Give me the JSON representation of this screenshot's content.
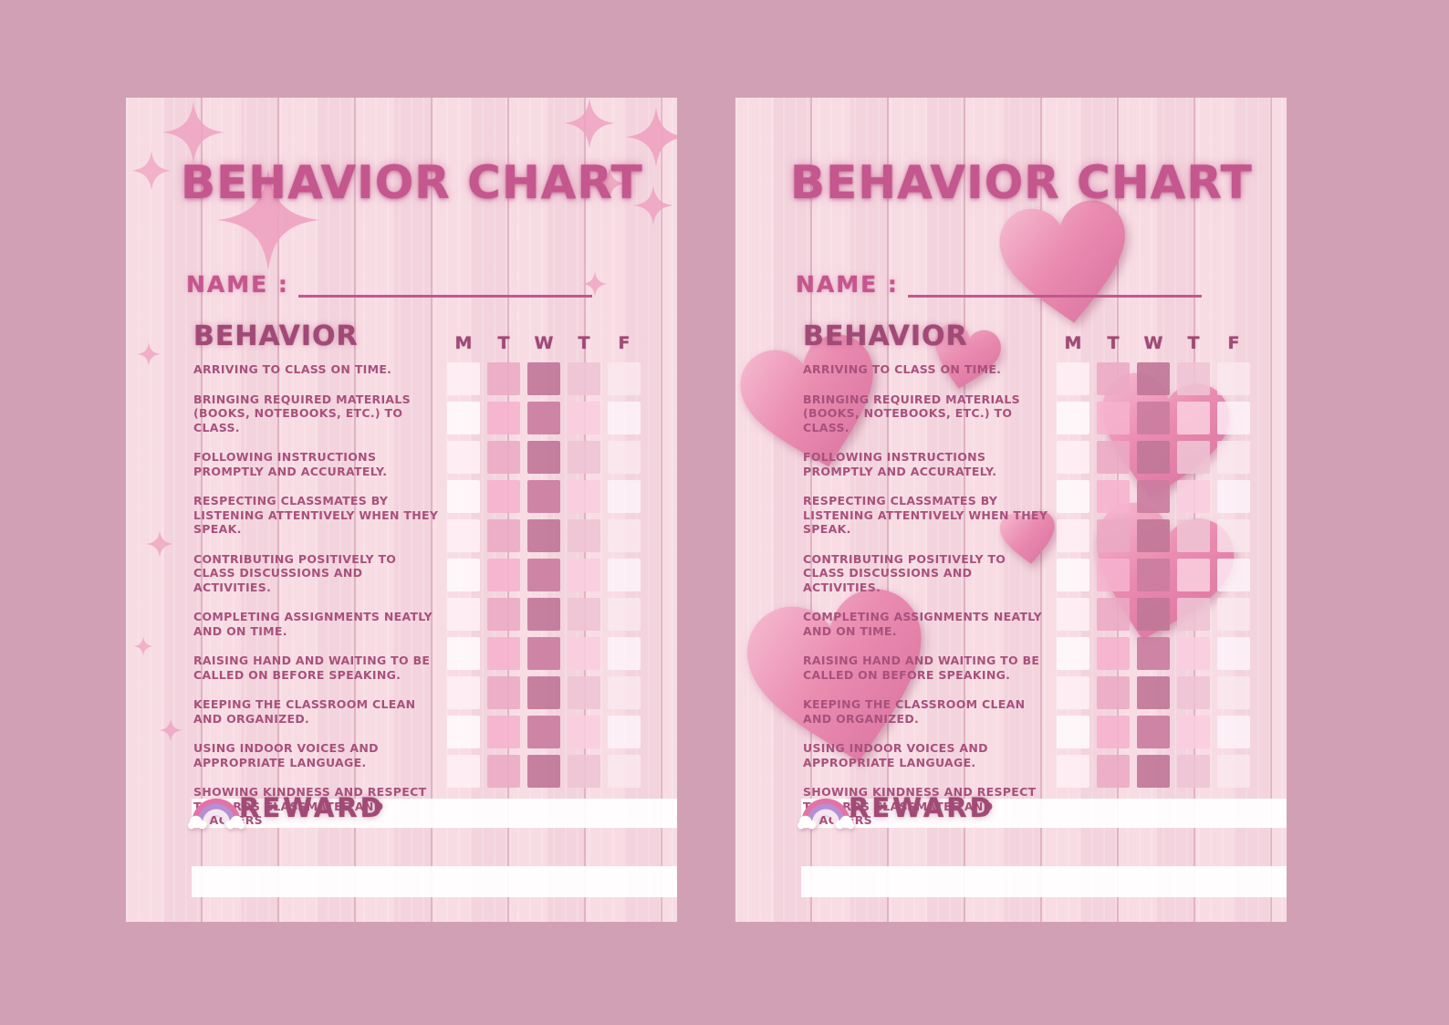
{
  "colors": {
    "background": "#d2a0b4",
    "paper": "#f7d9e2",
    "title": "#c4578d",
    "text": "#a8517c",
    "accent_dark": "#a14a76",
    "stripe": "#ffffff",
    "sparkle": "#efa3c1",
    "heart": "#e27da6"
  },
  "chart": {
    "title": "BEHAVIOR CHART",
    "name_label": "NAME :",
    "section_heading": "BEHAVIOR",
    "days": [
      "M",
      "T",
      "W",
      "T",
      "F"
    ],
    "behaviors": [
      "ARRIVING TO CLASS ON TIME.",
      "BRINGING REQUIRED MATERIALS (BOOKS, NOTEBOOKS, ETC.) TO CLASS.",
      "FOLLOWING INSTRUCTIONS PROMPTLY AND ACCURATELY.",
      "RESPECTING CLASSMATES BY LISTENING ATTENTIVELY WHEN THEY SPEAK.",
      "CONTRIBUTING POSITIVELY TO CLASS DISCUSSIONS AND ACTIVITIES.",
      "COMPLETING ASSIGNMENTS NEATLY AND ON TIME.",
      "RAISING HAND AND WAITING TO BE CALLED ON BEFORE SPEAKING.",
      "KEEPING THE CLASSROOM CLEAN AND ORGANIZED.",
      "USING INDOOR VOICES AND APPROPRIATE LANGUAGE.",
      "SHOWING KINDNESS AND RESPECT TOWARDS CLASSMATES AND TEACHERS"
    ],
    "grid": {
      "rows": 11,
      "cols": 5,
      "day_colors": [
        "rgba(255,241,246,0.8)",
        "rgba(234,170,196,0.88)",
        "rgba(193,119,152,0.92)",
        "rgba(238,196,212,0.88)",
        "rgba(250,233,239,0.78)"
      ]
    },
    "reward_label": "REWARD"
  }
}
